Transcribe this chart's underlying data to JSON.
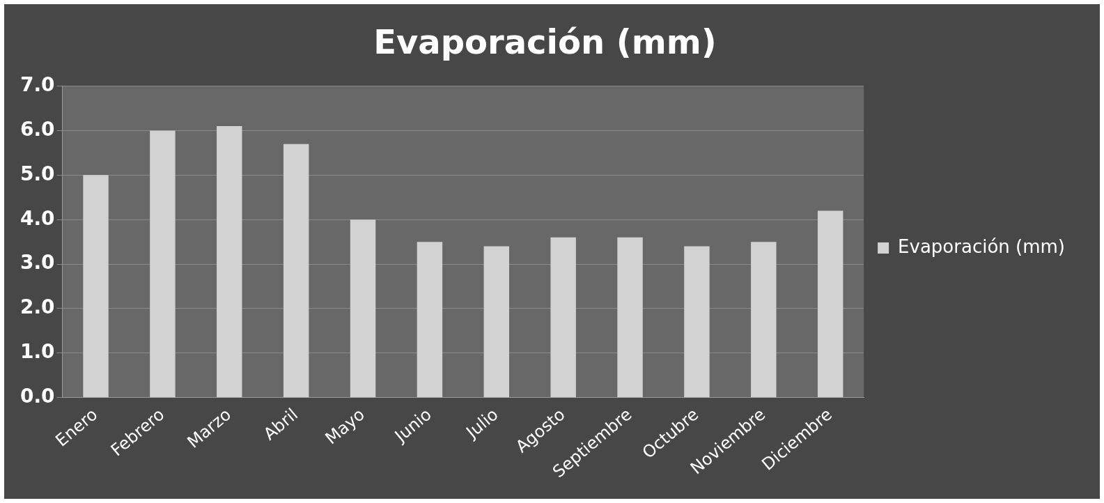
{
  "chart_data": {
    "type": "bar",
    "title": "Evaporación (mm)",
    "categories": [
      "Enero",
      "Febrero",
      "Marzo",
      "Abril",
      "Mayo",
      "Junio",
      "Julio",
      "Agosto",
      "Septiembre",
      "Octubre",
      "Noviembre",
      "Diciembre"
    ],
    "series": [
      {
        "name": "Evaporación (mm)",
        "color": "#d2d2d2",
        "values": [
          5.0,
          6.0,
          6.1,
          5.7,
          4.0,
          3.5,
          3.4,
          3.6,
          3.6,
          3.4,
          3.5,
          4.2
        ]
      }
    ],
    "ylim": [
      0,
      7
    ],
    "yticks": [
      {
        "value": 0,
        "label": "0.0"
      },
      {
        "value": 1,
        "label": "1.0"
      },
      {
        "value": 2,
        "label": "2.0"
      },
      {
        "value": 3,
        "label": "3.0"
      },
      {
        "value": 4,
        "label": "4.0"
      },
      {
        "value": 5,
        "label": "5.0"
      },
      {
        "value": 6,
        "label": "6.0"
      },
      {
        "value": 7,
        "label": "7.0"
      }
    ],
    "grid": "y",
    "legend": "right"
  }
}
